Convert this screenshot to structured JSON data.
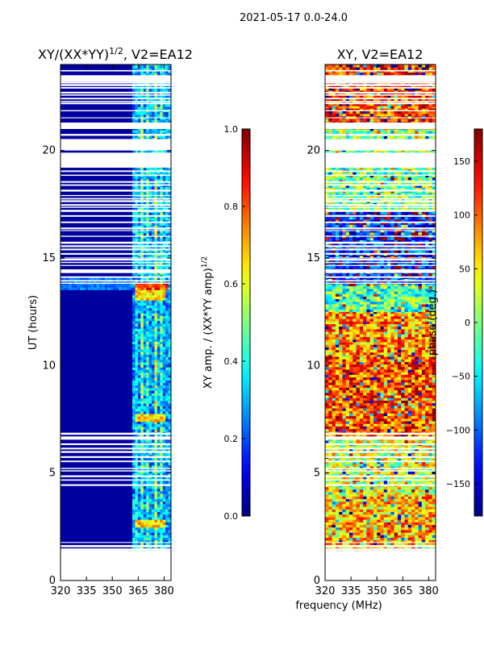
{
  "figure": {
    "suptitle": "2021-05-17 0.0-24.0",
    "xlabel_shared": "frequency (MHz)"
  },
  "chart_data": [
    {
      "type": "heatmap",
      "id": "amp",
      "title": "XY/(XX*YY)1/2, V2=EA12",
      "title_main": "XY/(XX*YY)",
      "title_exp": "1/2",
      "title_tail": ", V2=EA12",
      "xlabel": "",
      "ylabel": "UT (hours)",
      "xlim": [
        320,
        384
      ],
      "ylim": [
        0,
        24
      ],
      "xticks": [
        320,
        335,
        350,
        365,
        380
      ],
      "yticks": [
        0,
        5,
        10,
        15,
        20
      ],
      "data_time_range": [
        1.4,
        24
      ],
      "background_value": 0.03,
      "band_value": 0.3,
      "channels": [
        {
          "freq": 363,
          "value": 0.35
        },
        {
          "freq": 366,
          "value": 0.45
        },
        {
          "freq": 370,
          "value": 0.4
        },
        {
          "freq": 374,
          "value": 0.5
        },
        {
          "freq": 378,
          "value": 0.42
        },
        {
          "freq": 382,
          "value": 0.3
        }
      ],
      "hotspots": [
        {
          "t": 13.6,
          "f": [
            362,
            382
          ],
          "value": 0.85
        },
        {
          "t": 13.2,
          "f": [
            362,
            380
          ],
          "value": 0.7
        },
        {
          "t": 7.5,
          "f": [
            362,
            380
          ],
          "value": 0.7
        },
        {
          "t": 2.6,
          "f": [
            362,
            380
          ],
          "value": 0.72
        }
      ],
      "colorbar": {
        "label": "XY amp. / (XX*YY amp)1/2",
        "label_main": "XY amp. / (XX*YY amp)",
        "label_exp": "1/2",
        "range": [
          0.0,
          1.0
        ],
        "ticks": [
          "0.0",
          "0.2",
          "0.4",
          "0.6",
          "0.8",
          "1.0"
        ]
      }
    },
    {
      "type": "heatmap",
      "id": "phase",
      "title": "XY, V2=EA12",
      "xlabel": "frequency (MHz)",
      "ylabel": "",
      "xlim": [
        320,
        384
      ],
      "ylim": [
        0,
        24
      ],
      "xticks": [
        320,
        335,
        350,
        365,
        380
      ],
      "yticks": [
        0,
        5,
        10,
        15,
        20
      ],
      "data_time_range": [
        1.4,
        24
      ],
      "regions": [
        {
          "t": [
            1.4,
            4.0
          ],
          "value": 65
        },
        {
          "t": [
            4.0,
            6.7
          ],
          "value": 30
        },
        {
          "t": [
            6.7,
            10.5
          ],
          "value": 110
        },
        {
          "t": [
            10.5,
            12.5
          ],
          "value": 80
        },
        {
          "t": [
            12.5,
            13.8
          ],
          "value": -20
        },
        {
          "t": [
            13.8,
            17.2
          ],
          "value": -130
        },
        {
          "t": [
            17.2,
            21.0
          ],
          "value": 0
        },
        {
          "t": [
            21.0,
            24.0
          ],
          "value": 120
        }
      ],
      "colorbar": {
        "label": "phase (deg.)",
        "range": [
          -180,
          180
        ],
        "ticks": [
          "150",
          "100",
          "50",
          "0",
          "−50",
          "−100",
          "−150"
        ]
      }
    }
  ]
}
